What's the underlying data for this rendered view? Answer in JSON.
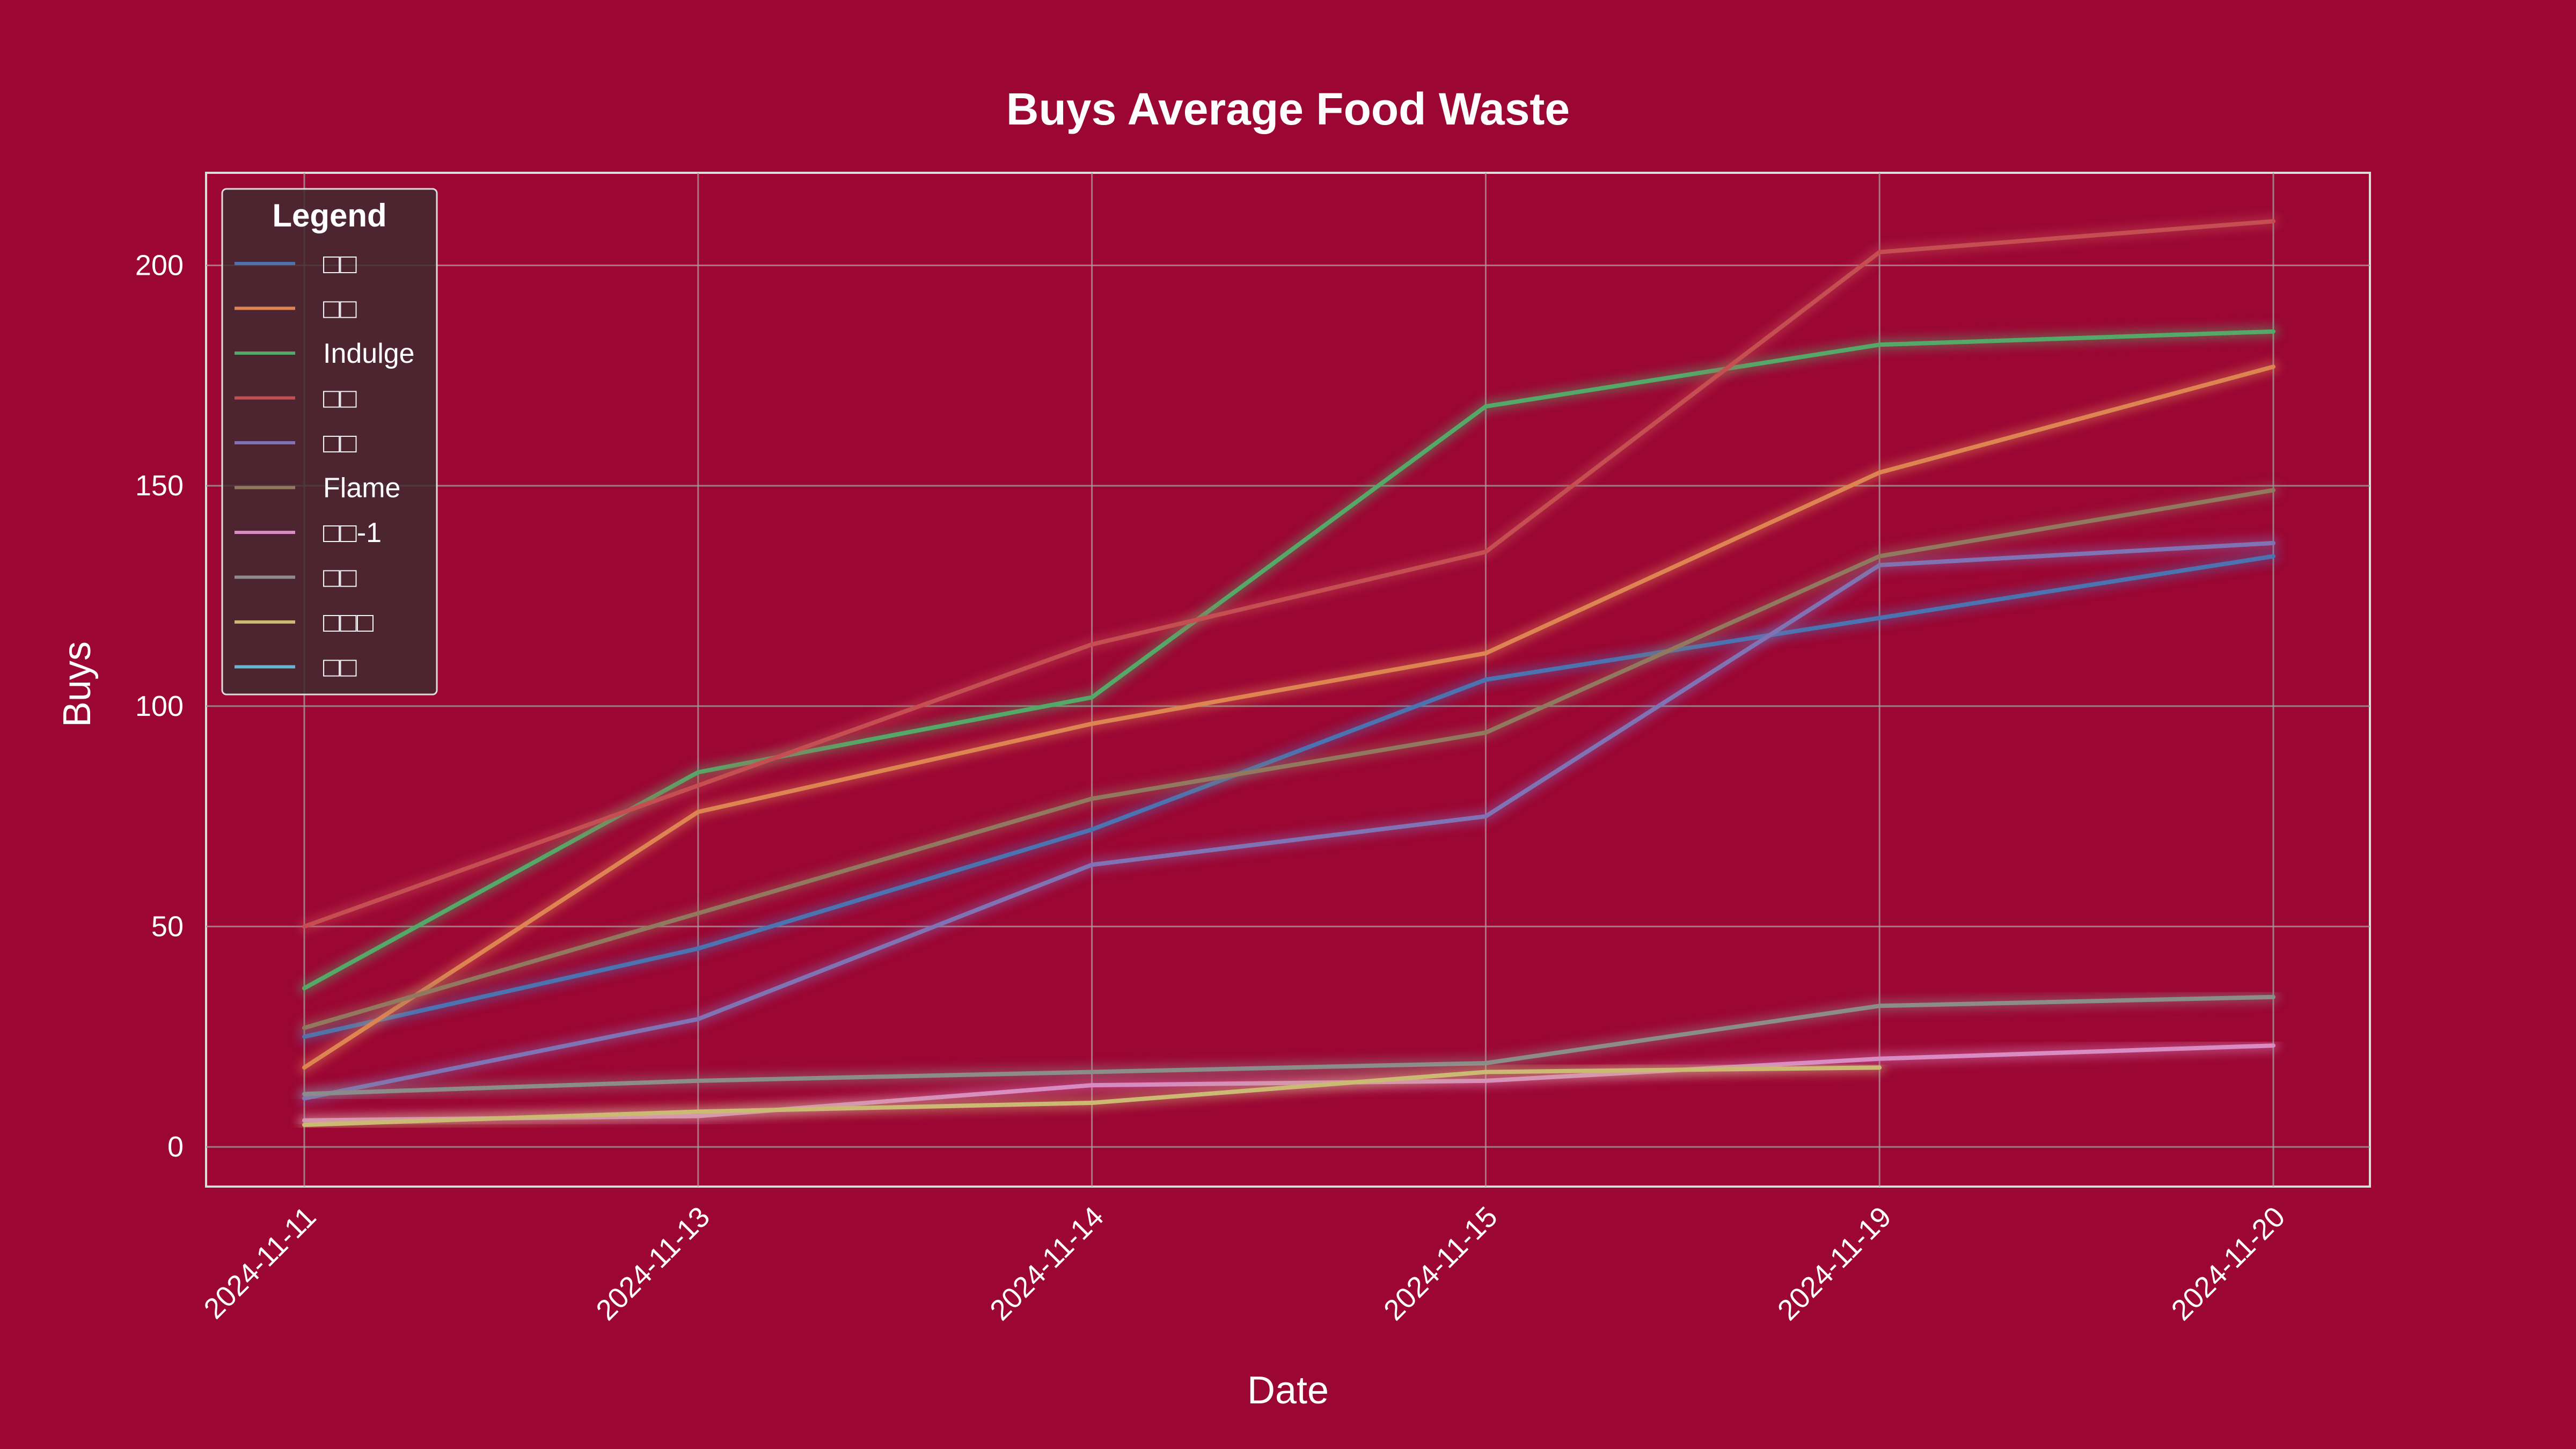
{
  "chart_data": {
    "type": "line",
    "title": "Buys Average Food Waste",
    "xlabel": "Date",
    "ylabel": "Buys",
    "x": [
      "2024-11-11",
      "2024-11-13",
      "2024-11-14",
      "2024-11-15",
      "2024-11-19",
      "2024-11-20"
    ],
    "ylim": [
      -9,
      221
    ],
    "yticks": [
      0,
      50,
      100,
      150,
      200
    ],
    "grid": true,
    "legend": {
      "title": "Legend",
      "placement": "top-left"
    },
    "series": [
      {
        "name": "□□",
        "color": "#4c72b0",
        "values": [
          25,
          45,
          72,
          106,
          120,
          134
        ]
      },
      {
        "name": "□□",
        "color": "#dd8452",
        "values": [
          18,
          76,
          96,
          112,
          153,
          177
        ]
      },
      {
        "name": "Indulge",
        "color": "#55a868",
        "values": [
          36,
          85,
          102,
          168,
          182,
          185
        ]
      },
      {
        "name": "□□",
        "color": "#c44e52",
        "values": [
          50,
          82,
          114,
          135,
          203,
          210
        ]
      },
      {
        "name": "□□",
        "color": "#8172b3",
        "values": [
          11,
          29,
          64,
          75,
          132,
          137
        ]
      },
      {
        "name": "Flame",
        "color": "#937860",
        "values": [
          27,
          53,
          79,
          94,
          134,
          149
        ]
      },
      {
        "name": "□□-1",
        "color": "#da8bc3",
        "values": [
          6,
          7,
          14,
          15,
          20,
          23
        ]
      },
      {
        "name": "□□",
        "color": "#8c8c8c",
        "values": [
          12,
          15,
          17,
          19,
          32,
          34
        ]
      },
      {
        "name": "□□□",
        "color": "#ccb974",
        "values": [
          5,
          8,
          10,
          17,
          18,
          null
        ]
      },
      {
        "name": "□□",
        "color": "#64b5cd",
        "values": [
          null,
          null,
          null,
          null,
          null,
          null
        ]
      }
    ]
  }
}
